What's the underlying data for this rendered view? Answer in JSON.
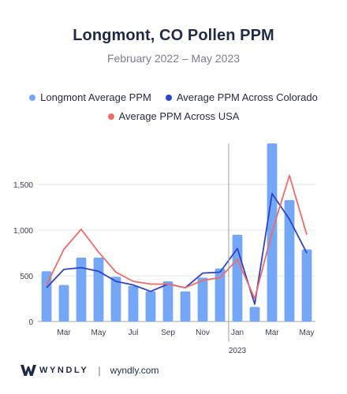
{
  "header": {
    "title": "Longmont, CO Pollen PPM",
    "subtitle": "February 2022 – May 2023"
  },
  "legend": [
    {
      "label": "Longmont Average PPM",
      "color": "#74a7f7"
    },
    {
      "label": "Average PPM Across Colorado",
      "color": "#2d44c8"
    },
    {
      "label": "Average PPM Across USA",
      "color": "#ef6b68"
    }
  ],
  "footer": {
    "brand": "WYNDLY",
    "separator": "|",
    "site": "wyndly.com"
  },
  "chart_data": {
    "type": "bar",
    "title": "Longmont, CO Pollen PPM",
    "subtitle": "February 2022 – May 2023",
    "categories": [
      "2022-02",
      "2022-03",
      "2022-04",
      "2022-05",
      "2022-06",
      "2022-07",
      "2022-08",
      "2022-09",
      "2022-10",
      "2022-11",
      "2022-12",
      "2023-01",
      "2023-02",
      "2023-03",
      "2023-04",
      "2023-05"
    ],
    "x_tick_labels": [
      "",
      "Mar",
      "",
      "May",
      "",
      "Jul",
      "",
      "Sep",
      "",
      "Nov",
      "",
      "Jan",
      "",
      "Mar",
      "",
      "May"
    ],
    "year_label": "2023",
    "year_marker_category": "2023-01",
    "ylim": [
      0,
      1950
    ],
    "yticks": [
      0,
      500,
      1000,
      1500
    ],
    "ytick_labels": [
      "0",
      "500",
      "1,000",
      "1,500"
    ],
    "grid": true,
    "legend_position": "top",
    "series": [
      {
        "name": "Longmont Average PPM",
        "type": "bar",
        "color": "#74a7f7",
        "values": [
          550,
          400,
          700,
          700,
          490,
          390,
          330,
          440,
          330,
          480,
          580,
          950,
          160,
          1950,
          1330,
          790
        ]
      },
      {
        "name": "Average PPM Across Colorado",
        "type": "line",
        "color": "#2d44c8",
        "values": [
          370,
          570,
          590,
          550,
          440,
          400,
          330,
          410,
          370,
          530,
          540,
          800,
          190,
          1400,
          1120,
          750
        ]
      },
      {
        "name": "Average PPM Across USA",
        "type": "line",
        "color": "#ef6b68",
        "values": [
          400,
          790,
          1010,
          760,
          540,
          440,
          410,
          410,
          370,
          450,
          480,
          680,
          250,
          980,
          1600,
          950
        ]
      }
    ]
  }
}
